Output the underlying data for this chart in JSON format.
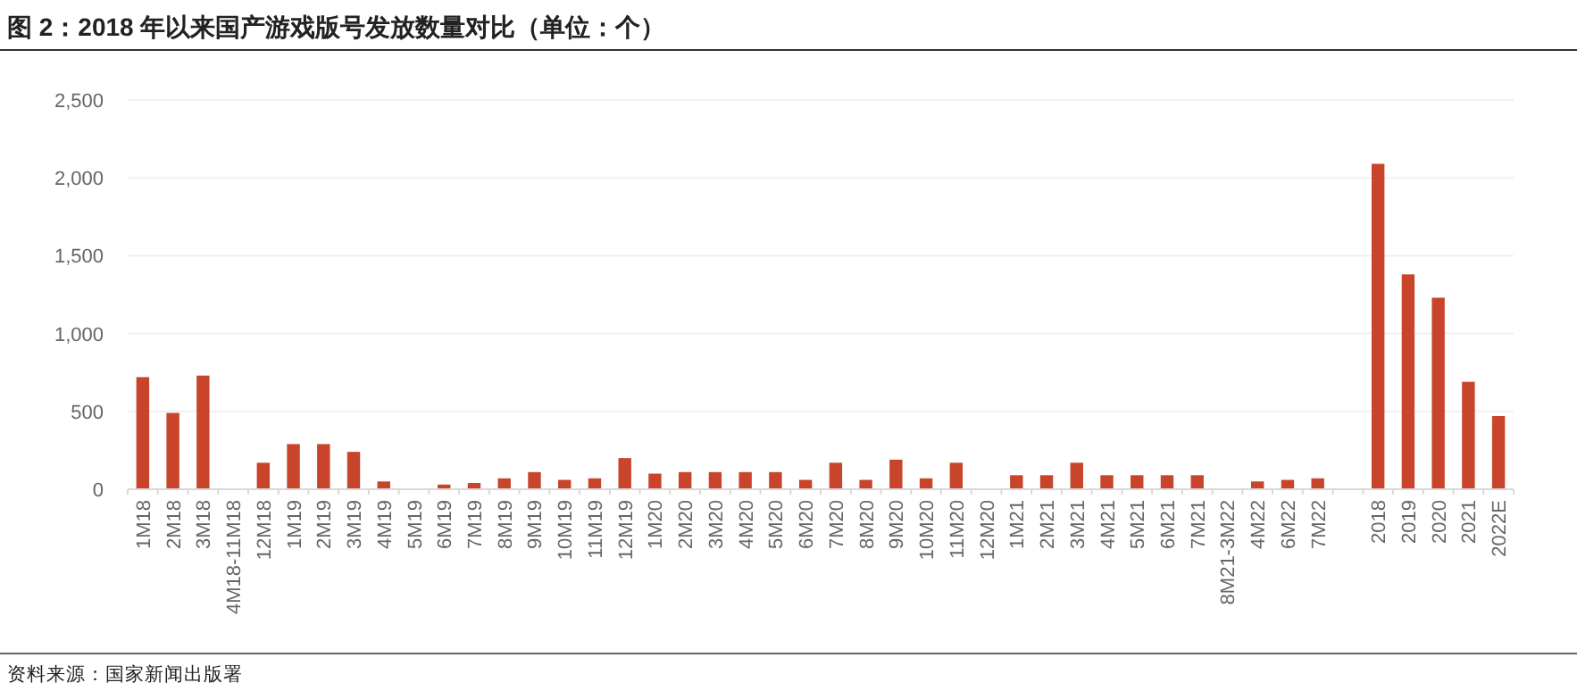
{
  "chart_data": {
    "type": "bar",
    "title": "图 2：2018 年以来国产游戏版号发放数量对比（单位：个）",
    "annotations": [
      "资料来源：国家新闻出版署"
    ],
    "categories": [
      "1M18",
      "2M18",
      "3M18",
      "4M18-11M18",
      "12M18",
      "1M19",
      "2M19",
      "3M19",
      "4M19",
      "5M19",
      "6M19",
      "7M19",
      "8M19",
      "9M19",
      "10M19",
      "11M19",
      "12M19",
      "1M20",
      "2M20",
      "3M20",
      "4M20",
      "5M20",
      "6M20",
      "7M20",
      "8M20",
      "9M20",
      "10M20",
      "11M20",
      "12M20",
      "1M21",
      "2M21",
      "3M21",
      "4M21",
      "5M21",
      "6M21",
      "7M21",
      "8M21-3M22",
      "4M22",
      "6M22",
      "7M22",
      null,
      "2018",
      "2019",
      "2020",
      "2021",
      "2022E"
    ],
    "values": [
      720,
      490,
      730,
      0,
      170,
      290,
      290,
      240,
      50,
      0,
      30,
      40,
      70,
      110,
      60,
      70,
      200,
      100,
      110,
      110,
      110,
      110,
      60,
      170,
      60,
      190,
      70,
      170,
      0,
      90,
      90,
      170,
      90,
      90,
      90,
      90,
      0,
      50,
      60,
      70,
      null,
      2090,
      1380,
      1230,
      690,
      470
    ],
    "color": "#c8442a",
    "ylim": [
      0,
      2500
    ],
    "yticks": [
      0,
      {
        "value": 500,
        "label": "500"
      },
      {
        "value": 1000,
        "label": "1,000"
      },
      {
        "value": 1500,
        "label": "1,500"
      },
      {
        "value": 2000,
        "label": "2,000"
      },
      {
        "value": 2500,
        "label": "2,500"
      }
    ],
    "grid": "y"
  }
}
